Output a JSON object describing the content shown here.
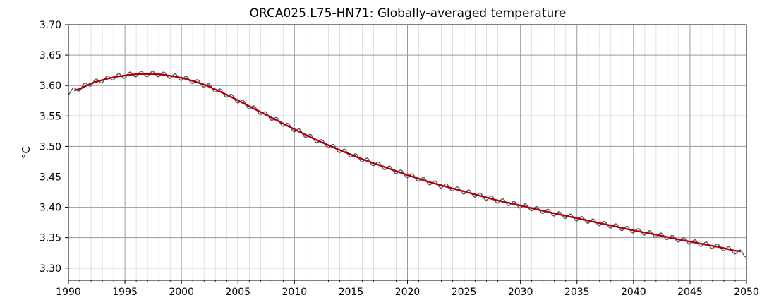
{
  "chart_data": {
    "type": "line",
    "title": "ORCA025.L75-HN71: Globally-averaged temperature",
    "xlabel": "",
    "ylabel": "°C",
    "xlim": [
      1990,
      2050
    ],
    "ylim": [
      3.28,
      3.7
    ],
    "x_ticks": [
      "1990",
      "1995",
      "2000",
      "2005",
      "2010",
      "2015",
      "2020",
      "2025",
      "2030",
      "2035",
      "2040",
      "2045",
      "2050"
    ],
    "y_ticks": [
      "3.30",
      "3.35",
      "3.40",
      "3.45",
      "3.50",
      "3.55",
      "3.60",
      "3.65",
      "3.70"
    ],
    "grid": true,
    "minor_grid_x_step_years": 1,
    "series": [
      {
        "role": "monthly",
        "color": "#4a5a78",
        "seasonal_amplitude": 0.0045,
        "x": [
          1990,
          1992,
          1994,
          1996,
          1998,
          2000,
          2002,
          2004,
          2006,
          2008,
          2010,
          2012,
          2014,
          2016,
          2018,
          2020,
          2022,
          2024,
          2026,
          2028,
          2030,
          2032,
          2034,
          2036,
          2038,
          2040,
          2042,
          2044,
          2046,
          2048,
          2050
        ],
        "y": [
          3.588,
          3.604,
          3.614,
          3.619,
          3.619,
          3.613,
          3.602,
          3.585,
          3.566,
          3.547,
          3.528,
          3.51,
          3.494,
          3.479,
          3.466,
          3.453,
          3.441,
          3.431,
          3.421,
          3.411,
          3.403,
          3.394,
          3.386,
          3.378,
          3.37,
          3.362,
          3.355,
          3.347,
          3.34,
          3.333,
          3.322
        ]
      },
      {
        "role": "running-mean",
        "color": "#b00000",
        "x": [
          1990.5,
          1992,
          1994,
          1996,
          1998,
          2000,
          2002,
          2004,
          2006,
          2008,
          2010,
          2012,
          2014,
          2016,
          2018,
          2020,
          2022,
          2024,
          2026,
          2028,
          2030,
          2032,
          2034,
          2036,
          2038,
          2040,
          2042,
          2044,
          2046,
          2048,
          2049.5
        ],
        "y": [
          3.589,
          3.604,
          3.614,
          3.619,
          3.619,
          3.613,
          3.602,
          3.585,
          3.566,
          3.547,
          3.528,
          3.51,
          3.494,
          3.479,
          3.466,
          3.453,
          3.441,
          3.431,
          3.421,
          3.411,
          3.403,
          3.394,
          3.386,
          3.378,
          3.37,
          3.362,
          3.355,
          3.347,
          3.34,
          3.333,
          3.326
        ]
      }
    ]
  }
}
